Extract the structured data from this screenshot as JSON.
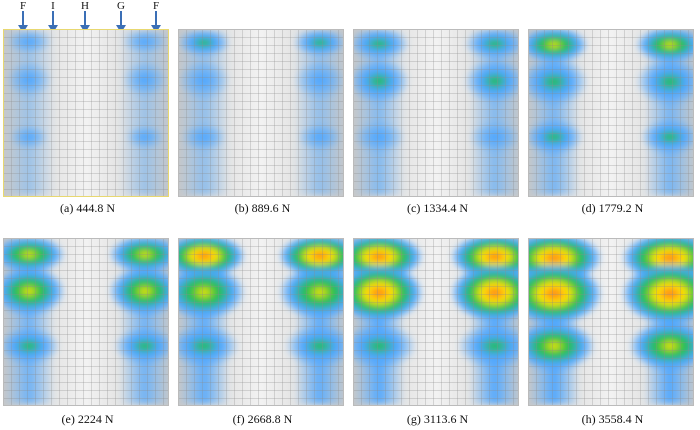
{
  "arrows": [
    "F",
    "I",
    "H",
    "G",
    "F"
  ],
  "panels": [
    {
      "caption": "(a) 444.8 N",
      "level": 0.1
    },
    {
      "caption": "(b) 889.6 N",
      "level": 0.22
    },
    {
      "caption": "(c) 1334.4 N",
      "level": 0.36
    },
    {
      "caption": "(d) 1779.2 N",
      "level": 0.48
    },
    {
      "caption": "(e) 2224 N",
      "level": 0.55
    },
    {
      "caption": "(f) 2668.8 N",
      "level": 0.72
    },
    {
      "caption": "(g) 3113.6 N",
      "level": 0.82
    },
    {
      "caption": "(h) 3558.4 N",
      "level": 0.95
    }
  ],
  "colors": {
    "background": "#d9d9d9",
    "grid": "#8c8c8c",
    "low": "#4da6ff",
    "mid": "#1fbf4a",
    "high": "#ffe600",
    "peak": "#ff7a1a",
    "frame": "#e8d870"
  }
}
